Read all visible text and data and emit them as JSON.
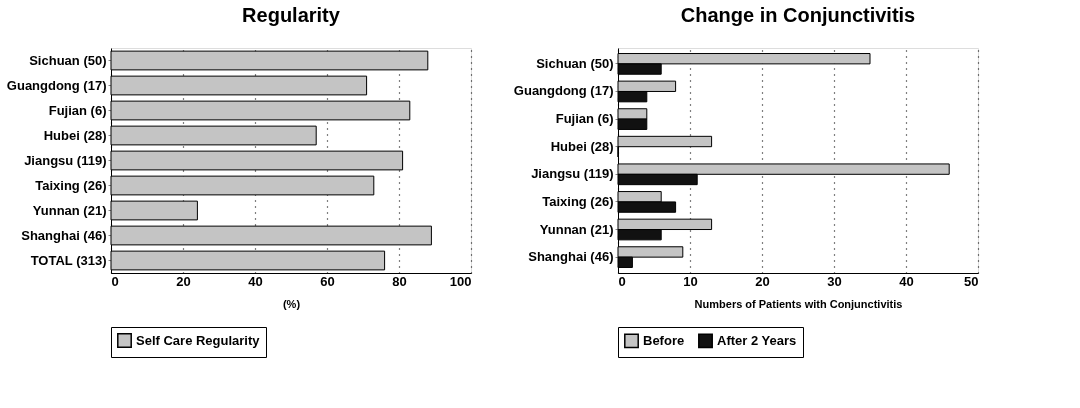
{
  "chart_data": [
    {
      "type": "bar",
      "orientation": "horizontal",
      "title": "Regularity",
      "xlabel": "(%)",
      "categories": [
        "Sichuan (50)",
        "Guangdong (17)",
        "Fujian (6)",
        "Hubei (28)",
        "Jiangsu (119)",
        "Taixing (26)",
        "Yunnan  (21)",
        "Shanghai (46)",
        "TOTAL (313)"
      ],
      "series": [
        {
          "name": "Self Care Regularity",
          "color": "#c4c4c4",
          "values": [
            88,
            71,
            83,
            57,
            81,
            73,
            24,
            89,
            76
          ]
        }
      ],
      "xlim": [
        0,
        100
      ],
      "xticks": [
        0,
        20,
        40,
        60,
        80,
        100
      ],
      "grid": "x",
      "legend": "bottom"
    },
    {
      "type": "bar",
      "orientation": "horizontal",
      "title": "Change in Conjunctivitis",
      "xlabel": "Numbers of Patients with Conjunctivitis",
      "categories": [
        "Sichuan (50)",
        "Guangdong (17)",
        "Fujian (6)",
        "Hubei (28)",
        "Jiangsu (119)",
        "Taixing (26)",
        "Yunnan  (21)",
        "Shanghai (46)"
      ],
      "series": [
        {
          "name": "Before",
          "color": "#c4c4c4",
          "values": [
            35,
            8,
            4,
            13,
            46,
            6,
            13,
            9
          ]
        },
        {
          "name": "After 2 Years",
          "color": "#111111",
          "values": [
            6,
            4,
            4,
            0,
            11,
            8,
            6,
            2
          ]
        }
      ],
      "xlim": [
        0,
        50
      ],
      "xticks": [
        0,
        10,
        20,
        30,
        40,
        50
      ],
      "grid": "x",
      "legend": "bottom"
    }
  ]
}
